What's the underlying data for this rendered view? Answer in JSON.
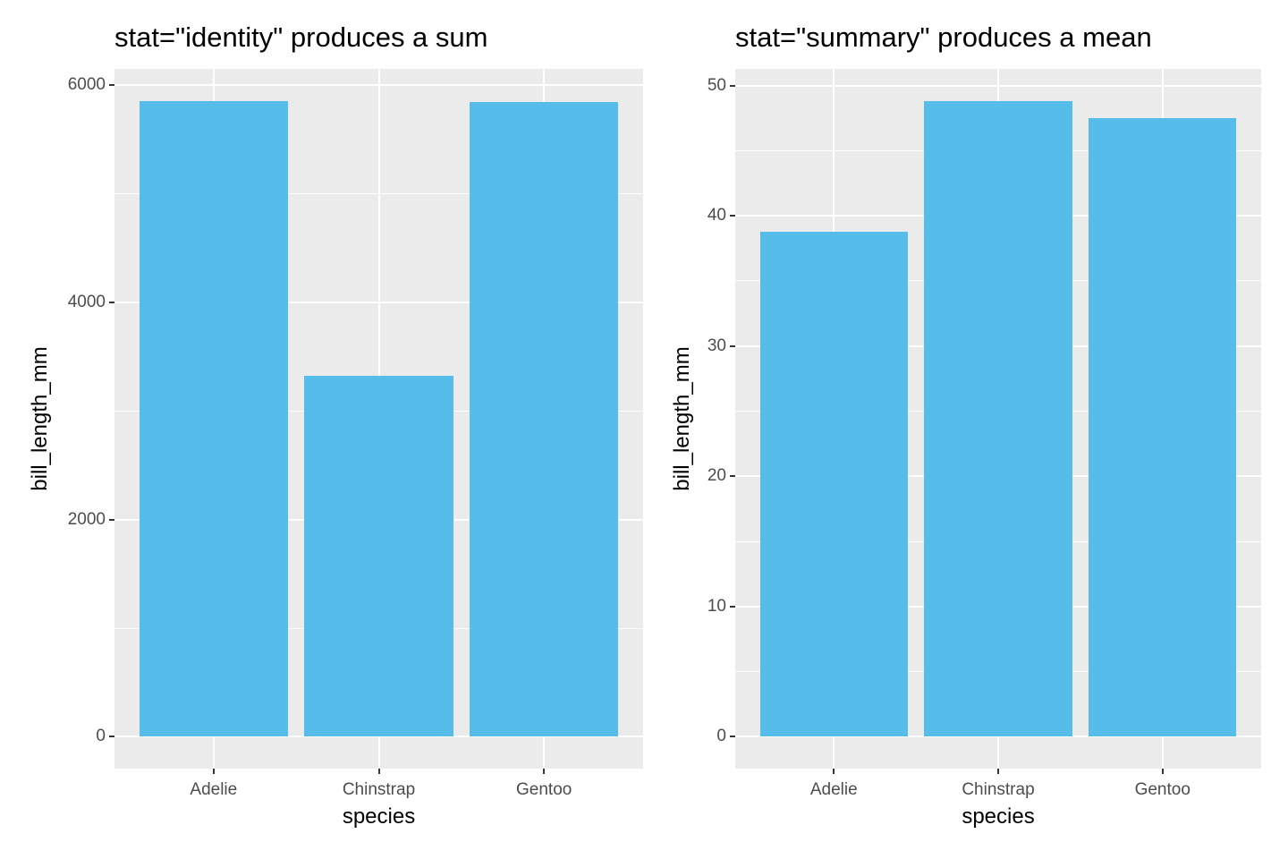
{
  "theme": {
    "panel_bg": "#EBEBEB",
    "grid_color": "#FFFFFF",
    "bar_fill": "#56BDEA",
    "tick_mark_color": "#333333",
    "tick_label_color": "#4D4D4D",
    "title_color": "#000000",
    "figure_bg": "#FFFFFF"
  },
  "chart_data": [
    {
      "type": "bar",
      "title": "stat=\"identity\" produces a sum",
      "categories": [
        "Adelie",
        "Chinstrap",
        "Gentoo"
      ],
      "values": [
        5857.5,
        3320.7,
        5843.1
      ],
      "xlabel": "species",
      "ylabel": "bill_length_mm",
      "ylim": [
        0,
        6000
      ],
      "y_major_ticks": [
        0,
        2000,
        4000,
        6000
      ],
      "y_minor_ticks": [
        1000,
        3000,
        5000
      ],
      "grid": true,
      "legend": "none"
    },
    {
      "type": "bar",
      "title": "stat=\"summary\" produces a mean",
      "categories": [
        "Adelie",
        "Chinstrap",
        "Gentoo"
      ],
      "values": [
        38.79,
        48.83,
        47.5
      ],
      "xlabel": "species",
      "ylabel": "bill_length_mm",
      "ylim": [
        0,
        50
      ],
      "y_major_ticks": [
        0,
        10,
        20,
        30,
        40,
        50
      ],
      "y_minor_ticks": [
        5,
        15,
        25,
        35,
        45
      ],
      "grid": true,
      "legend": "none"
    }
  ]
}
